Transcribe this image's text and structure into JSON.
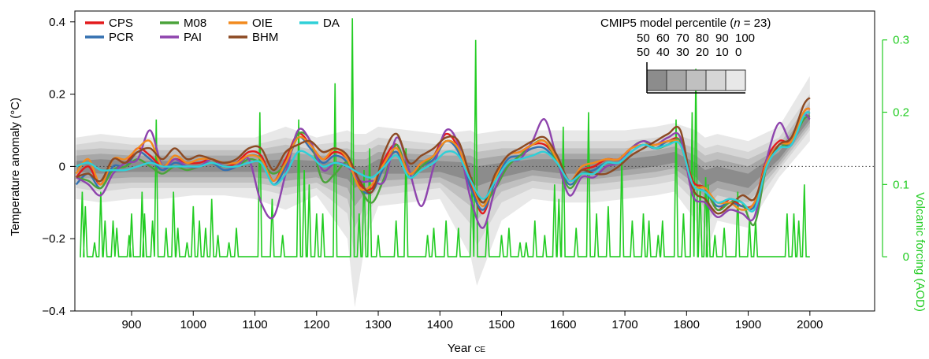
{
  "chart_data": {
    "type": "line",
    "xlabel": "Year",
    "xlabel_suffix": "CE",
    "ylabel": "Temperature anomaly (°C)",
    "y2label": "Volcanic forcing (AOD)",
    "xlim": [
      808,
      2105
    ],
    "ylim": [
      -0.4,
      0.43
    ],
    "y2lim": [
      -0.075,
      0.34
    ],
    "x_ticks": [
      900,
      1000,
      1100,
      1200,
      1300,
      1400,
      1500,
      1600,
      1700,
      1800,
      1900,
      2000
    ],
    "y_ticks": [
      -0.4,
      -0.2,
      0,
      0.2,
      0.4
    ],
    "y_tick_labels": [
      "−0.4",
      "−0.2",
      "0",
      "0.2",
      "0.4"
    ],
    "y2_ticks": [
      0,
      0.1,
      0.2,
      0.3
    ],
    "y2_tick_labels": [
      "0",
      "0.1",
      "0.2",
      "0.3"
    ],
    "zero_line": "dotted",
    "legend_position": "top-left",
    "colors": {
      "CPS": "#e31a1c",
      "PCR": "#3470b0",
      "M08": "#4aa33a",
      "PAI": "#8e44ad",
      "OIE": "#f28a1e",
      "BHM": "#8c4a23",
      "DA": "#2fd0d8",
      "volcanic": "#22cc22",
      "band": "#4a4a4a"
    },
    "percentile_key": {
      "title_prefix": "CMIP5 model percentile (",
      "n_symbol": "n",
      "n_suffix": " = 23)",
      "upper_labels": [
        "50",
        "60",
        "70",
        "80",
        "90",
        "100"
      ],
      "lower_labels": [
        "50",
        "40",
        "30",
        "20",
        "10",
        "0"
      ],
      "shades": [
        "#8c8c8c",
        "#a7a7a7",
        "#c0c0c0",
        "#d6d6d6",
        "#e8e8e8"
      ]
    },
    "x": [
      810,
      830,
      850,
      870,
      890,
      910,
      930,
      950,
      970,
      990,
      1010,
      1030,
      1050,
      1070,
      1090,
      1110,
      1130,
      1150,
      1170,
      1190,
      1210,
      1230,
      1250,
      1270,
      1290,
      1310,
      1330,
      1350,
      1370,
      1390,
      1410,
      1430,
      1450,
      1470,
      1490,
      1510,
      1530,
      1550,
      1570,
      1590,
      1610,
      1630,
      1650,
      1670,
      1690,
      1710,
      1730,
      1750,
      1770,
      1790,
      1810,
      1830,
      1850,
      1870,
      1890,
      1910,
      1930,
      1950,
      1970,
      1990,
      2000
    ],
    "series": [
      {
        "name": "CPS",
        "values": [
          -0.03,
          0.0,
          -0.05,
          0.02,
          0.01,
          0.05,
          0.03,
          0.0,
          0.02,
          0.01,
          0.01,
          0.02,
          0.0,
          0.01,
          0.04,
          0.03,
          -0.04,
          0.02,
          0.09,
          0.06,
          0.02,
          0.04,
          0.02,
          -0.05,
          -0.06,
          0.02,
          0.06,
          -0.02,
          0.01,
          0.03,
          0.09,
          0.05,
          -0.05,
          -0.13,
          -0.03,
          0.03,
          0.04,
          0.06,
          0.06,
          0.02,
          -0.04,
          -0.01,
          0.0,
          0.02,
          0.02,
          0.05,
          0.06,
          0.06,
          0.07,
          0.07,
          -0.04,
          -0.06,
          -0.12,
          -0.09,
          -0.11,
          -0.1,
          0.02,
          0.07,
          0.07,
          0.15,
          0.16
        ]
      },
      {
        "name": "PCR",
        "values": [
          -0.05,
          -0.02,
          -0.06,
          0.0,
          0.0,
          0.04,
          0.02,
          -0.01,
          0.01,
          0.0,
          0.0,
          0.01,
          -0.01,
          0.0,
          0.03,
          0.02,
          -0.05,
          0.0,
          0.08,
          0.05,
          0.01,
          0.03,
          0.01,
          -0.06,
          -0.07,
          0.0,
          0.04,
          -0.03,
          0.0,
          0.02,
          0.07,
          0.04,
          -0.06,
          -0.12,
          -0.04,
          0.02,
          0.03,
          0.05,
          0.05,
          0.01,
          -0.05,
          -0.02,
          -0.01,
          0.01,
          0.01,
          0.04,
          0.06,
          0.05,
          0.07,
          0.06,
          -0.05,
          -0.07,
          -0.11,
          -0.1,
          -0.11,
          -0.11,
          0.01,
          0.06,
          0.06,
          0.14,
          0.15
        ]
      },
      {
        "name": "M08",
        "values": [
          -0.03,
          -0.04,
          -0.06,
          -0.01,
          0.0,
          0.02,
          0.0,
          -0.02,
          0.0,
          -0.01,
          0.0,
          0.01,
          0.0,
          0.0,
          0.02,
          0.01,
          -0.02,
          0.01,
          0.09,
          0.07,
          -0.04,
          -0.02,
          0.01,
          -0.06,
          -0.1,
          -0.03,
          0.06,
          -0.03,
          0.0,
          0.03,
          0.07,
          0.05,
          -0.04,
          -0.1,
          -0.06,
          0.0,
          0.03,
          0.06,
          0.07,
          0.01,
          -0.06,
          -0.02,
          -0.02,
          0.01,
          0.01,
          0.05,
          0.07,
          0.05,
          0.06,
          0.07,
          -0.05,
          -0.06,
          -0.12,
          -0.1,
          -0.1,
          -0.16,
          0.0,
          0.05,
          0.07,
          0.13,
          0.14
        ]
      },
      {
        "name": "PAI",
        "values": [
          -0.03,
          -0.05,
          -0.08,
          -0.02,
          0.01,
          0.02,
          0.1,
          0.0,
          0.02,
          0.0,
          0.0,
          0.02,
          0.0,
          0.0,
          0.02,
          -0.1,
          -0.14,
          -0.02,
          0.1,
          0.07,
          -0.01,
          0.01,
          0.0,
          -0.04,
          -0.04,
          -0.04,
          0.08,
          -0.01,
          -0.11,
          0.0,
          0.1,
          0.06,
          -0.09,
          -0.17,
          -0.06,
          0.01,
          0.02,
          0.07,
          0.13,
          0.02,
          -0.08,
          -0.03,
          -0.03,
          0.0,
          0.01,
          0.05,
          0.07,
          0.06,
          0.08,
          0.08,
          -0.08,
          -0.1,
          -0.14,
          -0.12,
          -0.13,
          -0.14,
          0.02,
          0.12,
          0.07,
          0.14,
          0.13
        ]
      },
      {
        "name": "OIE",
        "values": [
          -0.02,
          0.02,
          -0.05,
          0.02,
          0.02,
          0.05,
          0.07,
          0.0,
          0.03,
          0.01,
          0.02,
          0.02,
          0.01,
          0.01,
          0.03,
          0.02,
          -0.04,
          0.01,
          0.08,
          0.06,
          0.02,
          0.05,
          0.02,
          -0.06,
          -0.05,
          0.01,
          0.05,
          -0.02,
          0.01,
          0.03,
          0.07,
          0.05,
          -0.04,
          -0.11,
          -0.03,
          0.03,
          0.04,
          0.06,
          0.07,
          0.02,
          -0.04,
          0.0,
          0.01,
          0.02,
          0.02,
          0.05,
          0.06,
          0.06,
          0.07,
          0.06,
          -0.05,
          -0.06,
          -0.1,
          -0.1,
          -0.12,
          -0.1,
          0.01,
          0.06,
          0.07,
          0.15,
          0.16
        ]
      },
      {
        "name": "BHM",
        "values": [
          -0.03,
          -0.02,
          -0.04,
          0.02,
          0.01,
          0.04,
          0.05,
          0.02,
          0.05,
          0.02,
          0.03,
          0.02,
          0.01,
          0.02,
          0.05,
          0.05,
          -0.01,
          0.04,
          0.06,
          0.07,
          0.04,
          0.05,
          0.03,
          -0.04,
          -0.07,
          0.04,
          0.09,
          0.01,
          0.03,
          0.05,
          0.08,
          0.07,
          -0.03,
          -0.1,
          -0.02,
          0.03,
          0.05,
          0.07,
          0.08,
          0.03,
          -0.04,
          -0.01,
          -0.02,
          -0.02,
          0.0,
          0.03,
          0.05,
          0.07,
          0.09,
          0.1,
          -0.06,
          -0.09,
          -0.13,
          -0.11,
          -0.08,
          -0.09,
          0.0,
          0.06,
          0.08,
          0.17,
          0.19
        ]
      },
      {
        "name": "DA",
        "values": [
          0.0,
          0.01,
          -0.01,
          -0.01,
          -0.01,
          0.0,
          0.01,
          0.0,
          0.0,
          0.0,
          0.0,
          0.01,
          0.0,
          0.0,
          0.01,
          0.01,
          -0.05,
          -0.02,
          0.04,
          0.03,
          0.0,
          0.01,
          0.0,
          -0.02,
          -0.03,
          0.0,
          0.03,
          -0.03,
          -0.01,
          0.01,
          0.04,
          0.03,
          -0.04,
          -0.09,
          -0.04,
          0.01,
          0.02,
          0.03,
          0.04,
          0.01,
          -0.04,
          -0.02,
          -0.02,
          0.01,
          0.01,
          0.04,
          0.06,
          0.05,
          0.06,
          0.06,
          -0.05,
          -0.07,
          -0.1,
          -0.09,
          -0.1,
          -0.12,
          0.0,
          0.05,
          0.06,
          0.14,
          0.15
        ]
      }
    ],
    "percentile_bands": {
      "x": [
        810,
        850,
        900,
        950,
        1000,
        1050,
        1100,
        1150,
        1200,
        1250,
        1262,
        1280,
        1300,
        1350,
        1400,
        1450,
        1460,
        1500,
        1550,
        1600,
        1650,
        1700,
        1750,
        1780,
        1815,
        1830,
        1850,
        1900,
        1950,
        2000
      ],
      "p0": [
        -0.09,
        -0.1,
        -0.09,
        -0.09,
        -0.08,
        -0.08,
        -0.09,
        -0.12,
        -0.08,
        -0.2,
        -0.39,
        -0.2,
        -0.11,
        -0.1,
        -0.09,
        -0.25,
        -0.33,
        -0.15,
        -0.09,
        -0.1,
        -0.1,
        -0.09,
        -0.08,
        -0.07,
        -0.15,
        -0.25,
        -0.15,
        -0.17,
        -0.03,
        0.07
      ],
      "p10": [
        -0.06,
        -0.07,
        -0.06,
        -0.06,
        -0.06,
        -0.06,
        -0.06,
        -0.08,
        -0.06,
        -0.13,
        -0.25,
        -0.14,
        -0.08,
        -0.07,
        -0.06,
        -0.16,
        -0.22,
        -0.1,
        -0.06,
        -0.07,
        -0.07,
        -0.06,
        -0.05,
        -0.04,
        -0.1,
        -0.17,
        -0.11,
        -0.13,
        -0.01,
        0.1
      ],
      "p20": [
        -0.045,
        -0.05,
        -0.045,
        -0.045,
        -0.045,
        -0.045,
        -0.045,
        -0.06,
        -0.045,
        -0.09,
        -0.17,
        -0.1,
        -0.06,
        -0.05,
        -0.045,
        -0.11,
        -0.15,
        -0.07,
        -0.04,
        -0.05,
        -0.05,
        -0.04,
        -0.03,
        -0.02,
        -0.07,
        -0.12,
        -0.08,
        -0.1,
        0.0,
        0.11
      ],
      "p30": [
        -0.03,
        -0.035,
        -0.03,
        -0.03,
        -0.03,
        -0.03,
        -0.03,
        -0.04,
        -0.03,
        -0.06,
        -0.11,
        -0.07,
        -0.04,
        -0.035,
        -0.03,
        -0.07,
        -0.1,
        -0.05,
        -0.025,
        -0.035,
        -0.035,
        -0.025,
        -0.015,
        -0.005,
        -0.05,
        -0.09,
        -0.06,
        -0.08,
        0.01,
        0.12
      ],
      "p40": [
        -0.015,
        -0.02,
        -0.015,
        -0.015,
        -0.015,
        -0.015,
        -0.015,
        -0.02,
        -0.015,
        -0.035,
        -0.06,
        -0.04,
        -0.02,
        -0.02,
        -0.015,
        -0.04,
        -0.055,
        -0.03,
        -0.01,
        -0.02,
        -0.02,
        -0.01,
        0.0,
        0.01,
        -0.03,
        -0.06,
        -0.04,
        -0.06,
        0.02,
        0.13
      ],
      "p50": [
        0.0,
        0.0,
        0.0,
        0.0,
        0.0,
        0.0,
        0.0,
        0.0,
        0.0,
        -0.01,
        -0.02,
        -0.02,
        0.0,
        0.0,
        0.0,
        -0.01,
        -0.02,
        -0.01,
        0.005,
        0.0,
        0.0,
        0.005,
        0.015,
        0.025,
        -0.01,
        -0.03,
        -0.02,
        -0.04,
        0.03,
        0.14
      ],
      "p60": [
        0.015,
        0.02,
        0.015,
        0.015,
        0.015,
        0.015,
        0.015,
        0.02,
        0.015,
        0.01,
        0.0,
        0.0,
        0.02,
        0.02,
        0.015,
        0.01,
        0.0,
        0.01,
        0.02,
        0.02,
        0.02,
        0.02,
        0.03,
        0.04,
        0.01,
        -0.01,
        0.0,
        -0.02,
        0.04,
        0.15
      ],
      "p70": [
        0.03,
        0.035,
        0.03,
        0.03,
        0.03,
        0.03,
        0.03,
        0.04,
        0.03,
        0.03,
        0.02,
        0.02,
        0.04,
        0.035,
        0.03,
        0.03,
        0.02,
        0.03,
        0.035,
        0.035,
        0.035,
        0.035,
        0.045,
        0.055,
        0.03,
        0.01,
        0.02,
        0.0,
        0.05,
        0.16
      ],
      "p80": [
        0.045,
        0.05,
        0.045,
        0.045,
        0.045,
        0.045,
        0.045,
        0.06,
        0.045,
        0.05,
        0.04,
        0.04,
        0.06,
        0.05,
        0.045,
        0.05,
        0.04,
        0.05,
        0.05,
        0.05,
        0.05,
        0.05,
        0.06,
        0.07,
        0.05,
        0.03,
        0.04,
        0.02,
        0.06,
        0.18
      ],
      "p90": [
        0.06,
        0.07,
        0.06,
        0.06,
        0.06,
        0.06,
        0.06,
        0.08,
        0.06,
        0.07,
        0.06,
        0.06,
        0.08,
        0.07,
        0.06,
        0.07,
        0.06,
        0.07,
        0.07,
        0.07,
        0.07,
        0.07,
        0.08,
        0.09,
        0.07,
        0.05,
        0.06,
        0.04,
        0.08,
        0.2
      ],
      "p100": [
        0.08,
        0.09,
        0.08,
        0.08,
        0.08,
        0.08,
        0.08,
        0.11,
        0.08,
        0.1,
        0.09,
        0.09,
        0.11,
        0.1,
        0.09,
        0.1,
        0.09,
        0.1,
        0.1,
        0.1,
        0.1,
        0.1,
        0.11,
        0.12,
        0.1,
        0.08,
        0.09,
        0.07,
        0.11,
        0.25
      ]
    },
    "volcanic": {
      "baseline": 0.0,
      "spike_width_years": 3,
      "years": [
        820,
        825,
        840,
        850,
        857,
        870,
        876,
        896,
        900,
        917,
        921,
        934,
        940,
        956,
        968,
        975,
        990,
        1000,
        1010,
        1020,
        1030,
        1040,
        1058,
        1070,
        1108,
        1128,
        1145,
        1171,
        1180,
        1188,
        1200,
        1210,
        1230,
        1258,
        1269,
        1277,
        1286,
        1300,
        1329,
        1345,
        1380,
        1390,
        1410,
        1430,
        1452,
        1458,
        1477,
        1500,
        1512,
        1530,
        1540,
        1554,
        1570,
        1586,
        1593,
        1600,
        1621,
        1641,
        1654,
        1673,
        1695,
        1712,
        1730,
        1739,
        1754,
        1761,
        1783,
        1795,
        1809,
        1815,
        1822,
        1831,
        1835,
        1846,
        1861,
        1883,
        1902,
        1912,
        1963,
        1974,
        1982,
        1991
      ],
      "aod": [
        0.09,
        0.07,
        0.02,
        0.09,
        0.05,
        0.05,
        0.04,
        0.03,
        0.06,
        0.09,
        0.06,
        0.05,
        0.19,
        0.04,
        0.09,
        0.04,
        0.02,
        0.07,
        0.05,
        0.04,
        0.08,
        0.03,
        0.02,
        0.04,
        0.2,
        0.08,
        0.03,
        0.19,
        0.12,
        0.1,
        0.06,
        0.06,
        0.24,
        0.33,
        0.06,
        0.12,
        0.15,
        0.03,
        0.05,
        0.15,
        0.03,
        0.04,
        0.05,
        0.04,
        0.11,
        0.3,
        0.05,
        0.03,
        0.04,
        0.02,
        0.02,
        0.05,
        0.03,
        0.1,
        0.08,
        0.18,
        0.04,
        0.2,
        0.06,
        0.07,
        0.14,
        0.05,
        0.06,
        0.05,
        0.03,
        0.05,
        0.19,
        0.06,
        0.2,
        0.26,
        0.1,
        0.11,
        0.1,
        0.03,
        0.04,
        0.09,
        0.05,
        0.05,
        0.06,
        0.06,
        0.05,
        0.1
      ]
    }
  }
}
